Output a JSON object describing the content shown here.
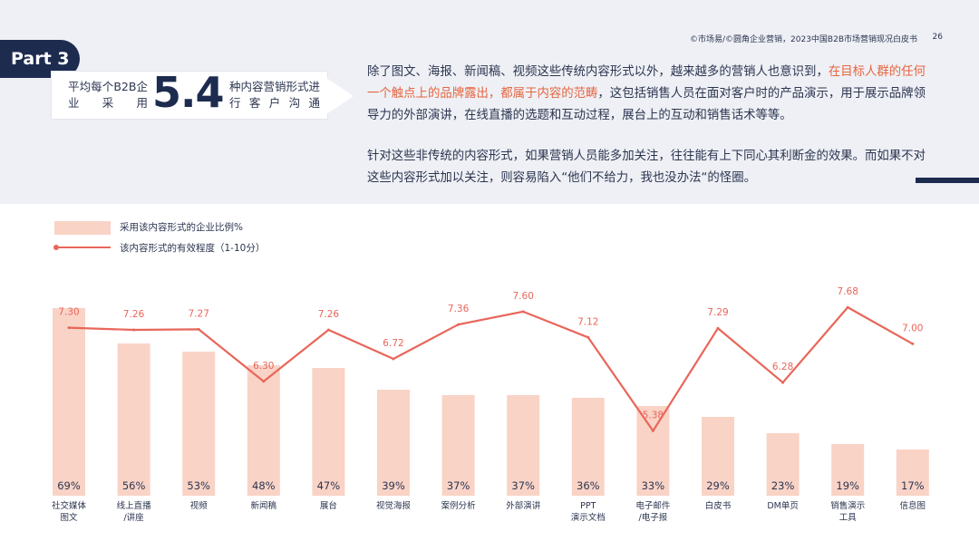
{
  "header": {
    "source": "©市场易/©圆角企业营销，2023中国B2B市场营销现况白皮书",
    "page_number": "26",
    "part_label": "Part 3"
  },
  "stat": {
    "left_text": "平均每个B2B企业采用",
    "number": "5.4",
    "right_text": "种内容营销形式进行客户沟通"
  },
  "paragraph1": {
    "line1": "除了图文、海报、新闻稿、视频这些传统内容形式以外，越来越多的营销人也意识到，",
    "highlight": "在目标人群的任何一个触点上的品牌露出，都属于内容的范畴",
    "rest": "，这包括销售人员在面对客户时的产品演示，用于展示品牌领导力的外部演讲，在线直播的选题和互动过程，展台上的互动和销售话术等等。"
  },
  "paragraph2": "针对这些非传统的内容形式，如果营销人员能多加关注，往往能有上下同心其利断金的效果。而如果不对这些内容形式加以关注，则容易陷入“他们不给力，我也没办法“的怪圈。",
  "colors": {
    "navy": "#1d2b4f",
    "bar": "#f9d3c6",
    "line": "#e8665a",
    "highlight": "#e5653f"
  },
  "chart_data": {
    "type": "bar",
    "categories": [
      "社交媒体\n图文",
      "线上直播\n/讲座",
      "视频",
      "新闻稿",
      "展台",
      "视觉海报",
      "案例分析",
      "外部演讲",
      "PPT\n演示文档",
      "电子邮件\n/电子报",
      "白皮书",
      "DM单页",
      "销售演示\n工具",
      "信息图"
    ],
    "series": [
      {
        "name": "采用该内容形式的企业比例%",
        "type": "bar",
        "values": [
          69,
          56,
          53,
          48,
          47,
          39,
          37,
          37,
          36,
          33,
          29,
          23,
          19,
          17
        ],
        "labels": [
          "69%",
          "56%",
          "53%",
          "48%",
          "47%",
          "39%",
          "37%",
          "37%",
          "36%",
          "33%",
          "29%",
          "23%",
          "19%",
          "17%"
        ]
      },
      {
        "name": "该内容形式的有效程度（1-10分）",
        "type": "line",
        "values": [
          7.3,
          7.26,
          7.27,
          6.3,
          7.26,
          6.72,
          7.36,
          7.6,
          7.12,
          5.38,
          7.29,
          6.28,
          7.68,
          7.0
        ],
        "labels": [
          "7.30",
          "7.26",
          "7.27",
          "6.30",
          "7.26",
          "6.72",
          "7.36",
          "7.60",
          "7.12",
          "5.38",
          "7.29",
          "6.28",
          "7.68",
          "7.00"
        ]
      }
    ],
    "bar_ylim": [
      0,
      75
    ],
    "line_ylim": [
      5.1,
      7.8
    ],
    "grid": false,
    "legend_position": "top-left"
  }
}
